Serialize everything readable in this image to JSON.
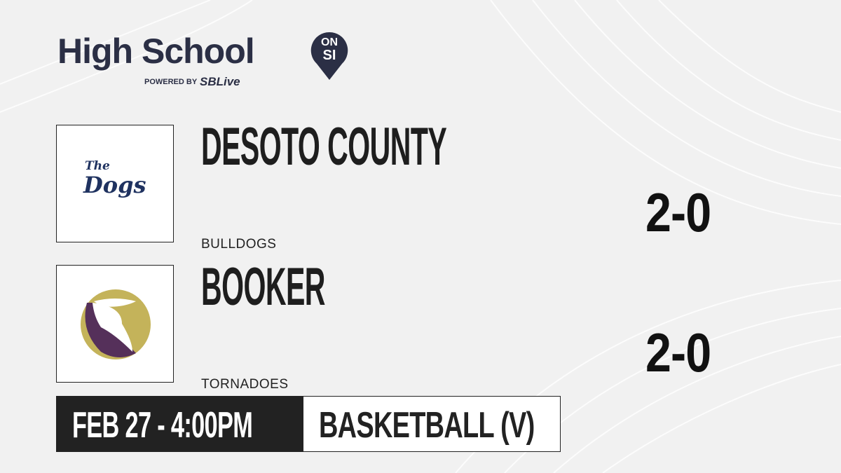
{
  "brand": {
    "title": "High School",
    "badge_top": "ON",
    "badge_bottom": "SI",
    "powered_by": "POWERED BY",
    "partner": "SBLive",
    "color": "#2b2f45",
    "partner_color": "#1fa3e0"
  },
  "teams": [
    {
      "name": "DESOTO COUNTY",
      "mascot": "BULLDOGS",
      "record": "2-0",
      "logo_text_1": "The",
      "logo_text_2": "Dogs",
      "logo_color": "#1f3260"
    },
    {
      "name": "BOOKER",
      "mascot": "TORNADOES",
      "record": "2-0",
      "logo_colors": [
        "#c4b35a",
        "#55305a"
      ]
    }
  ],
  "game": {
    "datetime": "FEB 27 - 4:00PM",
    "sport": "BASKETBALL (V)"
  }
}
